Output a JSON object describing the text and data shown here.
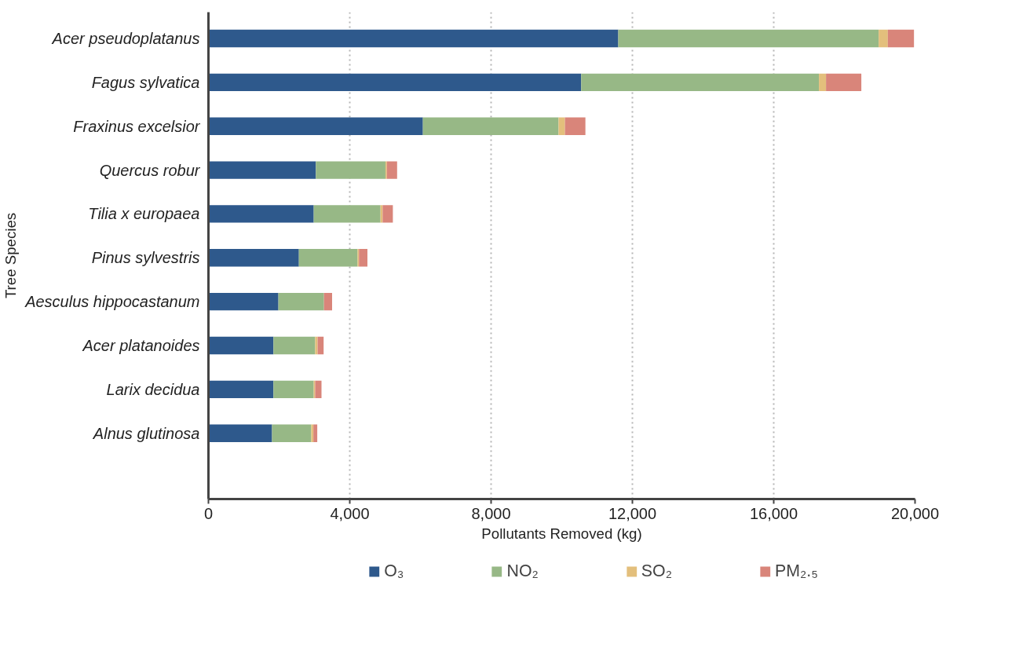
{
  "chart_data": {
    "type": "bar",
    "orientation": "horizontal",
    "stacked": true,
    "xlabel": "Pollutants Removed (kg)",
    "ylabel": "Tree Species",
    "categories": [
      "Acer pseudoplatanus",
      "Fagus sylvatica",
      "Fraxinus excelsior",
      "Quercus robur",
      "Tilia x europaea",
      "Pinus sylvestris",
      "Aesculus hippocastanum",
      "Acer platanoides",
      "Larix decidua",
      "Alnus glutinosa"
    ],
    "series": [
      {
        "name": "O₃",
        "color": "#2e598c",
        "values": [
          11600,
          10550,
          6070,
          3040,
          2980,
          2560,
          1980,
          1840,
          1840,
          1800
        ]
      },
      {
        "name": "NO₂",
        "color": "#97b886",
        "values": [
          7370,
          6730,
          3840,
          1970,
          1890,
          1660,
          1290,
          1180,
          1140,
          1110
        ]
      },
      {
        "name": "SO₂",
        "color": "#e3bf7c",
        "values": [
          260,
          200,
          180,
          40,
          60,
          40,
          0,
          70,
          40,
          60
        ]
      },
      {
        "name": "PM₂.₅",
        "color": "#d9857a",
        "values": [
          740,
          1000,
          580,
          290,
          290,
          240,
          230,
          170,
          180,
          110
        ]
      }
    ],
    "xlim": [
      0,
      20000
    ],
    "xticks": [
      0,
      {
        "value": 4000,
        "label": "4,000"
      },
      {
        "value": 8000,
        "label": "8,000"
      },
      {
        "value": 12000,
        "label": "12,000"
      },
      {
        "value": 16000,
        "label": "16,000"
      },
      {
        "value": 20000,
        "label": "20,000"
      }
    ],
    "grid": "x",
    "legend": "bottom"
  }
}
